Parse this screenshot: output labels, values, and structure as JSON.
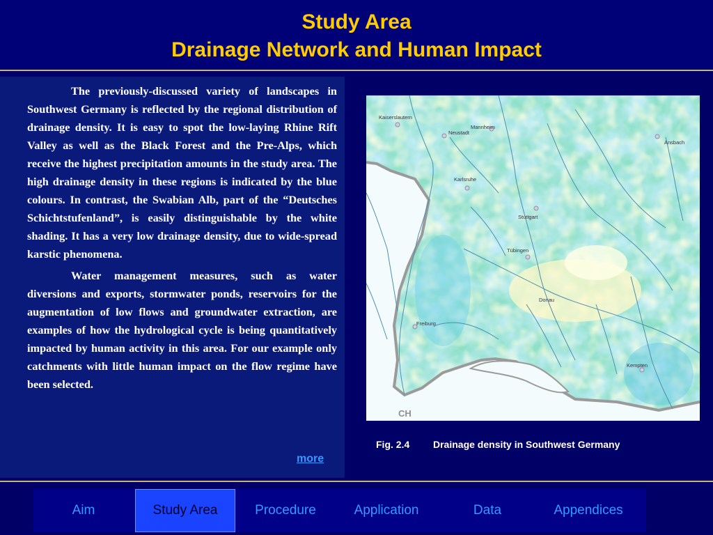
{
  "header": {
    "title_line1": "Study Area",
    "title_line2": "Drainage Network and Human Impact"
  },
  "body": {
    "paragraph1": "The previously-discussed variety of landscapes in Southwest Germany is reflected by the regional distribution of drainage density. It is easy to spot the low-laying Rhine Rift Valley as well as the Black Forest and the Pre-Alps, which receive the highest precipitation amounts in the study area. The high drainage density in these regions is indicated by the blue colours. In contrast, the Swabian Alb, part of the “Deutsches Schichtstufenland”, is easily distinguishable by the white shading. It has a very low drainage density, due to wide-spread karstic phenomena.",
    "paragraph2": "Water management measures, such as water diversions and exports, stormwater ponds, reservoirs for the augmentation of low flows and groundwater extraction, are examples of how the hydrological cycle is being quantitatively impacted by human activity in this area. For our example only catchments with little human impact on the flow regime have been selected.",
    "more_link": "more"
  },
  "figure": {
    "number": "Fig. 2.4",
    "caption": "Drainage density in Southwest Germany",
    "map_labels": {
      "kaiserslautern": "Kaiserslautern",
      "neustadt": "Neustadt",
      "mannheim": "Mannheim",
      "ansbach": "Ansbach",
      "karlsruhe": "Karlsruhe",
      "stuttgart": "Stuttgart",
      "tubingen": "Tübingen",
      "freiburg": "Freiburg",
      "kempten": "Kempten",
      "ch": "CH",
      "donau": "Donau"
    }
  },
  "nav": {
    "items": [
      "Aim",
      "Study Area",
      "Procedure",
      "Application",
      "Data",
      "Appendices"
    ],
    "active": "Study Area"
  },
  "colors": {
    "background": "#000066",
    "title": "#ffcc00",
    "link": "#3399ff",
    "nav_active": "#1a44ff",
    "separator": "#c9b47a"
  }
}
